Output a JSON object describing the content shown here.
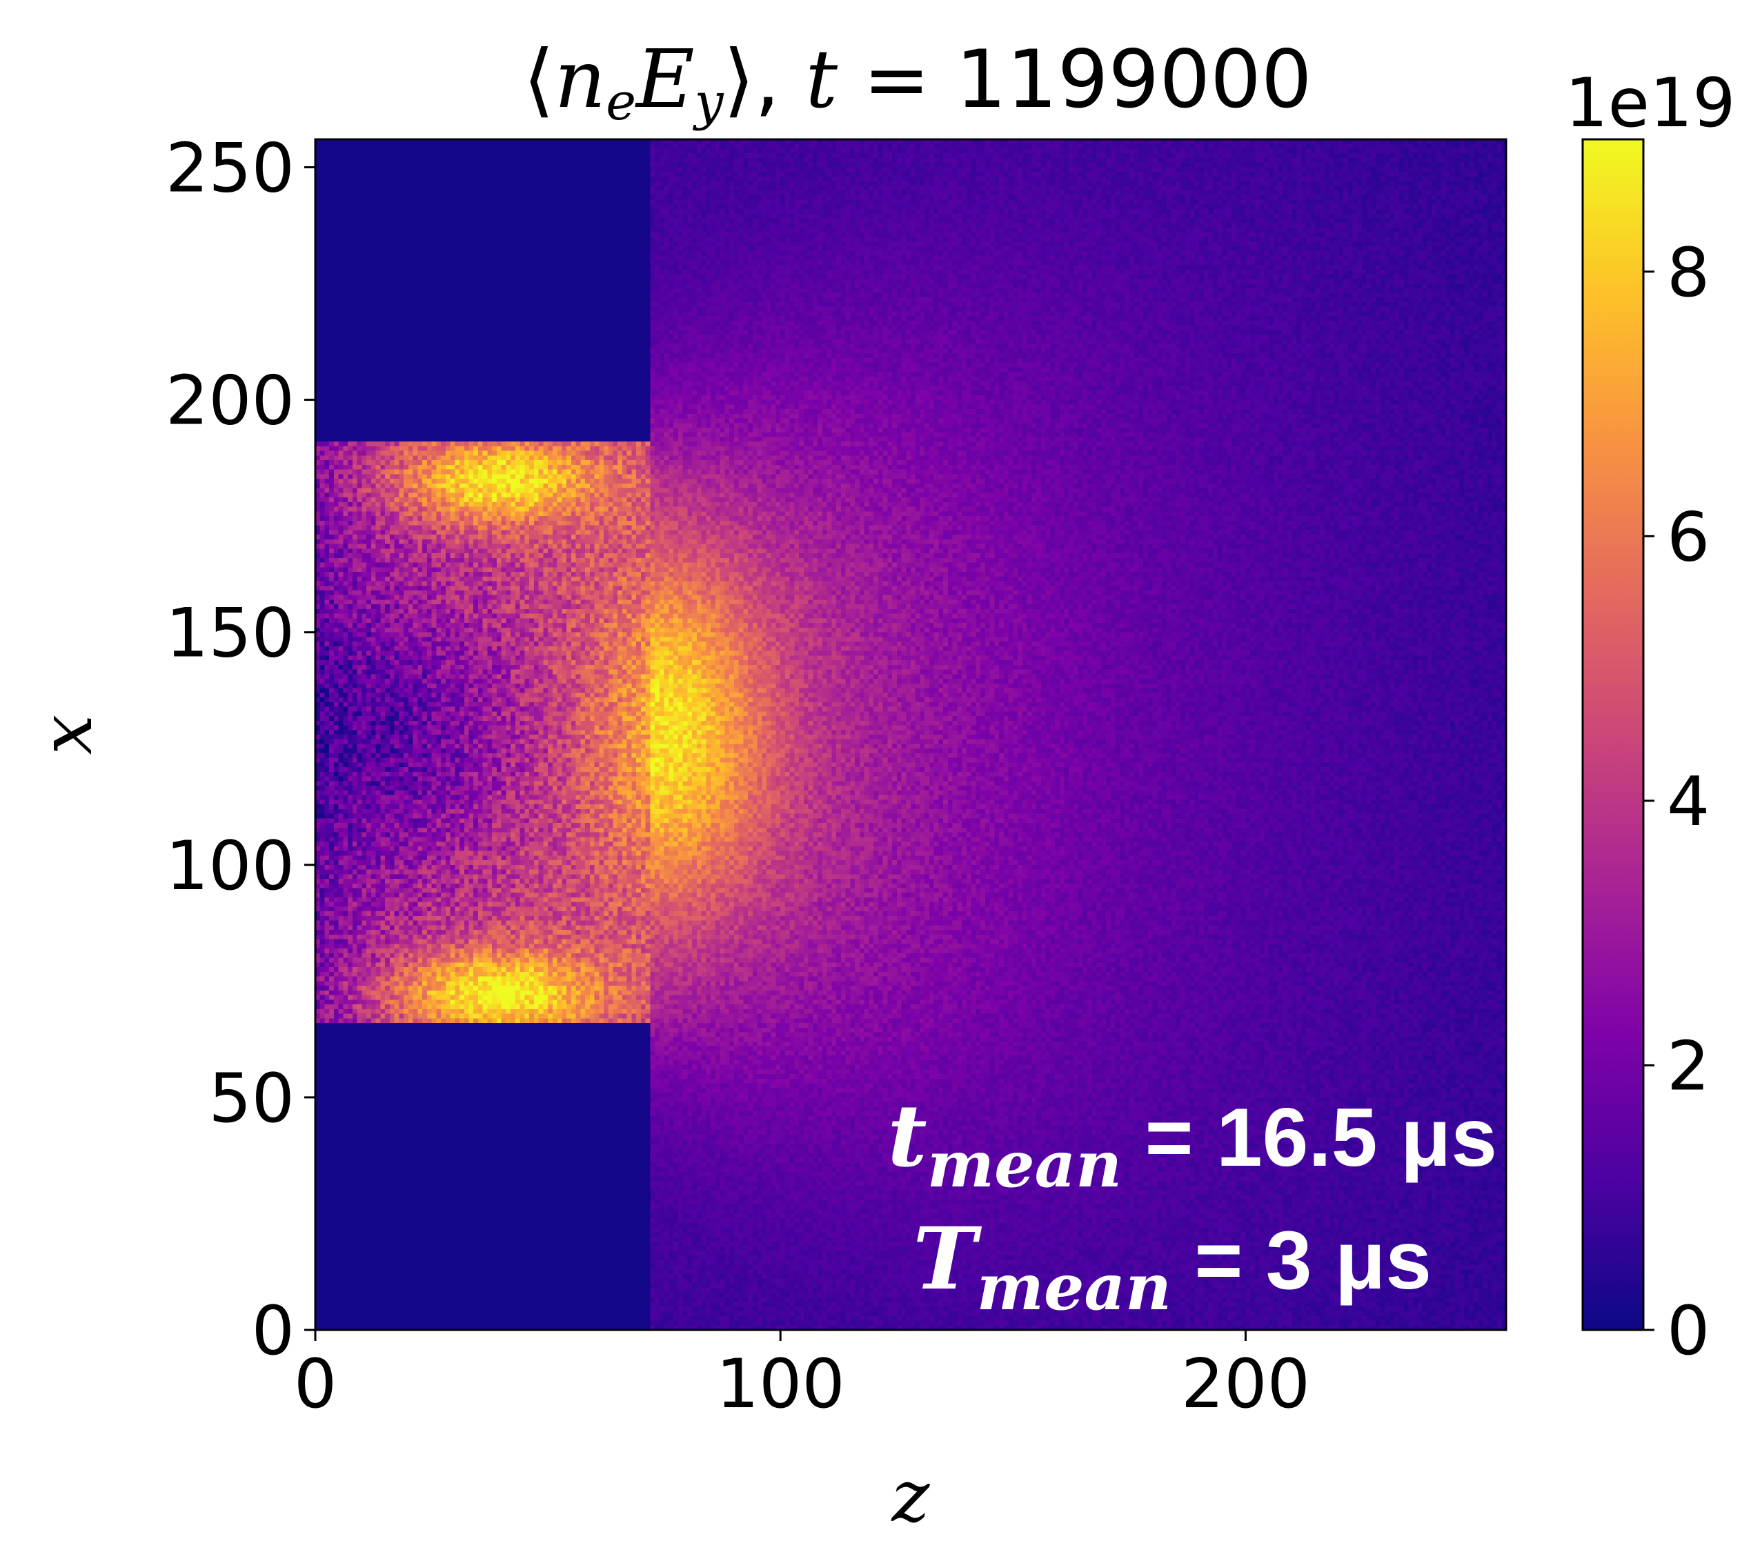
{
  "chart_data": {
    "type": "heatmap",
    "title": "⟨nₑE_y⟩, t = 1199000",
    "title_parts": {
      "open": "⟨",
      "n": "n",
      "e": "e",
      "E": "E",
      "y": "y",
      "close": "⟩, ",
      "t": "t",
      "eq": " = 1199000"
    },
    "xlabel": "z",
    "ylabel": "x",
    "xlim": [
      0,
      256
    ],
    "ylim": [
      0,
      256
    ],
    "xticks": [
      0,
      100,
      200
    ],
    "yticks": [
      0,
      50,
      100,
      150,
      200,
      250
    ],
    "colorbar": {
      "colormap": "plasma",
      "range": [
        0,
        9
      ],
      "ticks": [
        0,
        2,
        4,
        6,
        8
      ],
      "offset_label": "1e19"
    },
    "annotation": {
      "line1": {
        "sym": "t",
        "sub": "mean",
        "rest": " = 16.5 μs"
      },
      "line2": {
        "sym": "T",
        "sub": "mean",
        "rest": " = 3 μs"
      },
      "color": "#ffffff"
    },
    "features": {
      "background_level": 0.2,
      "inlet_z_end": 72,
      "inlet_x_range": [
        66,
        190
      ],
      "bright_lobes": [
        {
          "z": 38,
          "x": 182,
          "level": 8.5
        },
        {
          "z": 38,
          "x": 72,
          "level": 8.8
        }
      ],
      "central_plume": {
        "z": 78,
        "x": 128,
        "level": 6.5
      },
      "core_dark": {
        "z": 20,
        "x": 128,
        "level": 1.8
      }
    }
  }
}
